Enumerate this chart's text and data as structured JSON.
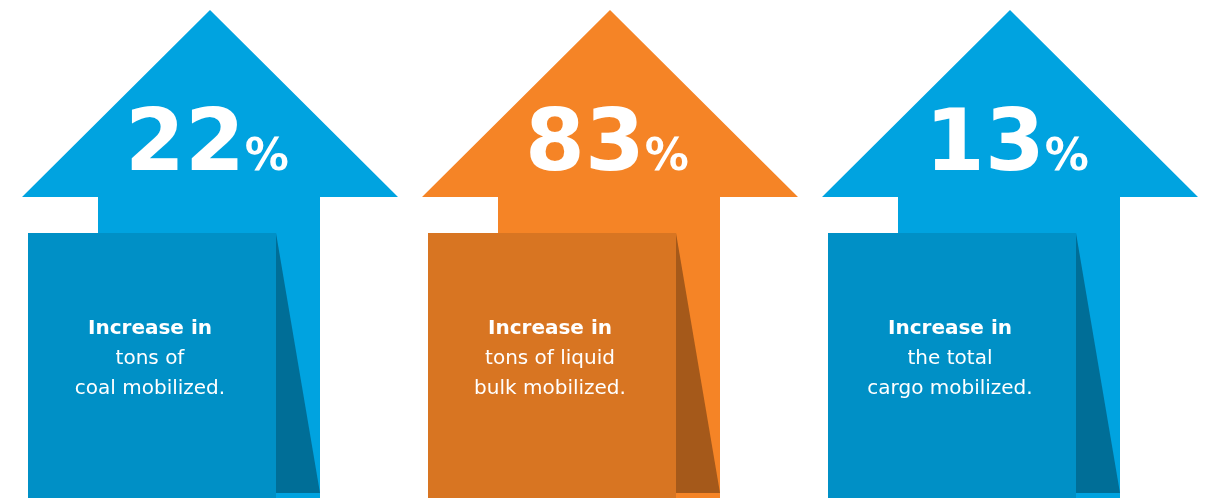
{
  "chart_data": {
    "type": "other",
    "categories": [
      "Increase in\ntons of\ncoal mobilized.",
      "Increase in\ntons of liquid\nbulk mobilized.",
      "Increase in\nthe total\ncargo mobilized."
    ],
    "values": [
      22,
      83,
      13
    ],
    "value_labels": [
      "22%",
      "83%",
      "13%"
    ],
    "colors": [
      "#00a3e0",
      "#f58426",
      "#00a3e0"
    ]
  }
}
